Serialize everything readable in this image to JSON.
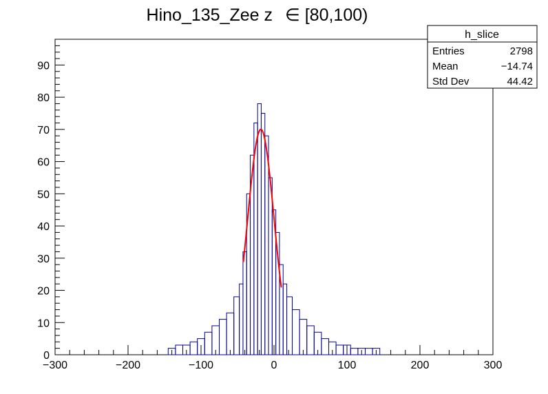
{
  "chart_data": {
    "type": "bar",
    "title": "Hino_135_Zee z",
    "title_range": "∈ [80,100)",
    "xlabel": "",
    "ylabel": "",
    "xlim": [
      -300,
      300
    ],
    "ylim": [
      0,
      98
    ],
    "x_ticks": [
      -300,
      -200,
      -100,
      0,
      100,
      200,
      300
    ],
    "y_ticks": [
      0,
      10,
      20,
      30,
      40,
      50,
      60,
      70,
      80,
      90
    ],
    "grid": false,
    "histogram_color": "#000099",
    "fit_color": "#ff0000",
    "stats_box": {
      "title": "h_slice",
      "rows": [
        {
          "label": "Entries",
          "value": "2798"
        },
        {
          "label": "Mean",
          "value": "−14.74"
        },
        {
          "label": "Std Dev",
          "value": "44.42"
        }
      ]
    },
    "histogram": {
      "x": [
        -140,
        -130,
        -120,
        -110,
        -100,
        -90,
        -80,
        -70,
        -60,
        -50,
        -45,
        -40,
        -35,
        -30,
        -25,
        -20,
        -15,
        -10,
        -5,
        0,
        5,
        10,
        15,
        20,
        30,
        40,
        50,
        60,
        70,
        80,
        90,
        100,
        110,
        120,
        130,
        140
      ],
      "values": [
        2,
        3,
        3,
        4,
        5,
        7,
        9,
        11,
        13,
        18,
        22,
        32,
        50,
        62,
        72,
        78,
        75,
        68,
        55,
        45,
        38,
        28,
        22,
        18,
        14,
        11,
        9,
        7,
        5,
        4,
        3,
        3,
        2,
        2,
        2,
        2
      ]
    },
    "fit": {
      "type": "gaussian",
      "amplitude": 70,
      "mean": -18,
      "sigma": 18,
      "x_range": [
        -42,
        10
      ]
    }
  }
}
